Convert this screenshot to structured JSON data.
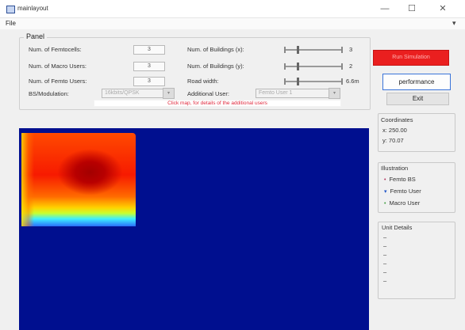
{
  "window": {
    "title": "mainlayout",
    "minimize": "—",
    "maximize": "☐",
    "close": "✕"
  },
  "menu": {
    "file": "File",
    "arrow": "▾"
  },
  "panel": {
    "title": "Panel",
    "femtocells": {
      "label": "Num. of Femtocells:",
      "value": "3"
    },
    "macro_users": {
      "label": "Num. of Macro Users:",
      "value": "3"
    },
    "femto_users": {
      "label": "Num. of Femto Users:",
      "value": "3"
    },
    "modulation": {
      "label": "BS/Modulation:",
      "value": "16kbits/QPSK"
    },
    "buildings_x": {
      "label": "Num. of Buildings (x):",
      "value": "3",
      "level": 0.22
    },
    "buildings_y": {
      "label": "Num. of Buildings (y):",
      "value": "2",
      "level": 0.22
    },
    "road_width": {
      "label": "Road width:",
      "value": "6.6m",
      "level": 0.22
    },
    "additional_user": {
      "label": "Additional User:",
      "value": "Femto User 1"
    },
    "hint": "Click map, for details of the additional users"
  },
  "buttons": {
    "red": "Run Simulation",
    "performance": "performance",
    "exit": "Exit"
  },
  "coordinates": {
    "title": "Coordinates",
    "x": "x: 250.00",
    "y": "y: 70.07"
  },
  "illustration": {
    "title": "Illustration",
    "items": [
      {
        "label": "Femto BS",
        "mark": "•",
        "color": "#b0305a"
      },
      {
        "label": "Femto User",
        "mark": "▾",
        "color": "#1f55c8"
      },
      {
        "label": "Macro User",
        "mark": "•",
        "color": "#3a9a3a"
      }
    ]
  },
  "unit_details": {
    "title": "Unit Details",
    "lines": [
      "–",
      "–",
      "–",
      "–",
      "–",
      "–"
    ]
  },
  "colors": {
    "plot_bg": "#000f8f",
    "red_button": "#ea1f1f",
    "accent": "#3a74d9"
  }
}
